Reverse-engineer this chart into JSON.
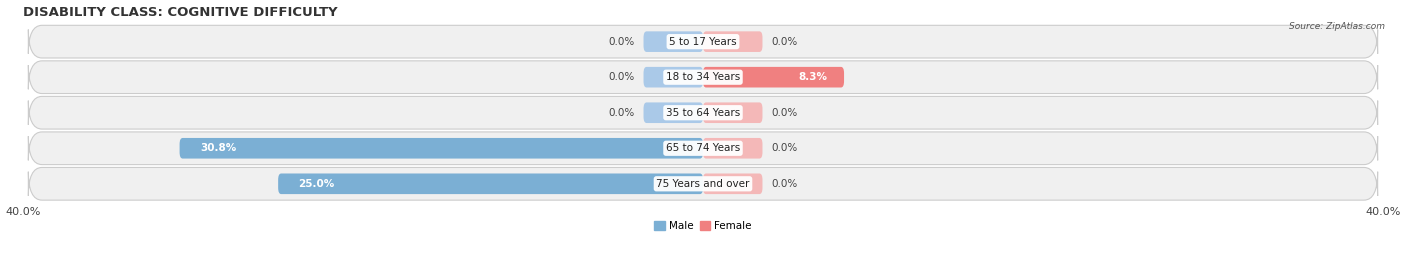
{
  "title": "DISABILITY CLASS: COGNITIVE DIFFICULTY",
  "source": "Source: ZipAtlas.com",
  "categories": [
    "5 to 17 Years",
    "18 to 34 Years",
    "35 to 64 Years",
    "65 to 74 Years",
    "75 Years and over"
  ],
  "male_values": [
    0.0,
    0.0,
    0.0,
    30.8,
    25.0
  ],
  "female_values": [
    0.0,
    8.3,
    0.0,
    0.0,
    0.0
  ],
  "max_value": 40.0,
  "male_color": "#7bafd4",
  "female_color": "#f08080",
  "male_color_light": "#aac9e8",
  "female_color_light": "#f4b8b8",
  "row_bg_color": "#f0f0f0",
  "row_border_color": "#cccccc",
  "title_fontsize": 9.5,
  "label_fontsize": 7.5,
  "tick_fontsize": 8,
  "bar_height": 0.58,
  "stub_size": 3.5,
  "figsize": [
    14.06,
    2.69
  ],
  "dpi": 100
}
